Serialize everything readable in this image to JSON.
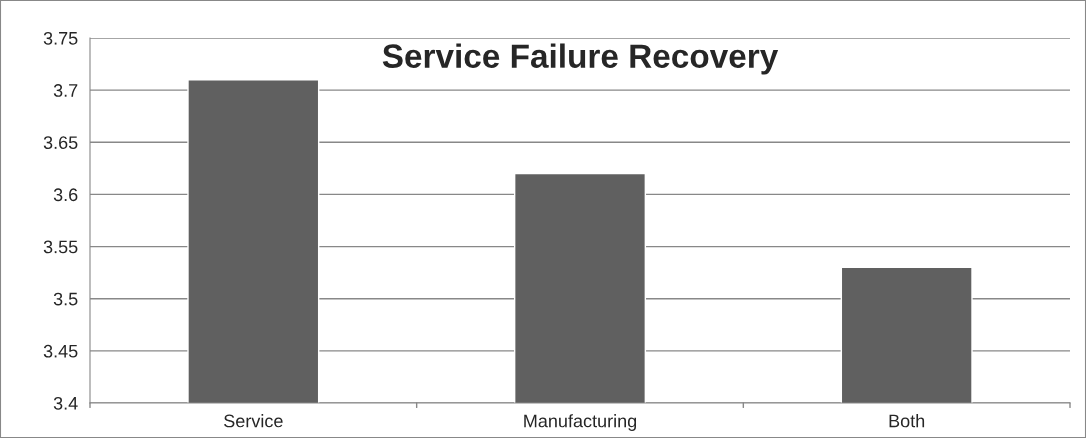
{
  "chart_data": {
    "type": "bar",
    "title": "Service Failure Recovery",
    "categories": [
      "Service",
      "Manufacturing",
      "Both"
    ],
    "values": [
      3.71,
      3.62,
      3.53
    ],
    "color": "#606060",
    "ylim": [
      3.4,
      3.75
    ],
    "yticks": [
      3.4,
      3.45,
      3.5,
      3.55,
      3.6,
      3.65,
      3.7,
      3.75
    ],
    "grid": "y",
    "legend": false
  }
}
